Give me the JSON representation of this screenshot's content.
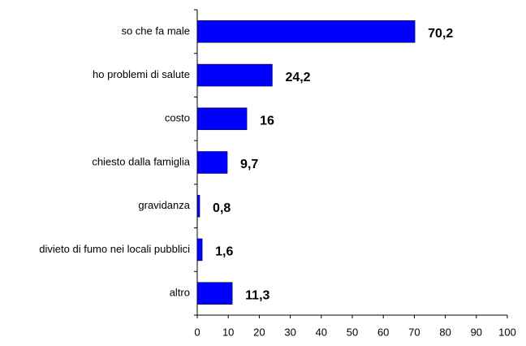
{
  "chart_data": {
    "type": "bar",
    "orientation": "horizontal",
    "categories": [
      "so che fa male",
      "ho problemi di salute",
      "costo",
      "chiesto dalla famiglia",
      "gravidanza",
      "divieto di fumo nei locali pubblici",
      "altro"
    ],
    "values": [
      70.2,
      24.2,
      16,
      9.7,
      0.8,
      1.6,
      11.3
    ],
    "value_labels": [
      "70,2",
      "24,2",
      "16",
      "9,7",
      "0,8",
      "1,6",
      "11,3"
    ],
    "color": "#0000ff",
    "xlim": [
      0,
      100
    ],
    "xticks": [
      0,
      10,
      20,
      30,
      40,
      50,
      60,
      70,
      80,
      90,
      100
    ]
  }
}
